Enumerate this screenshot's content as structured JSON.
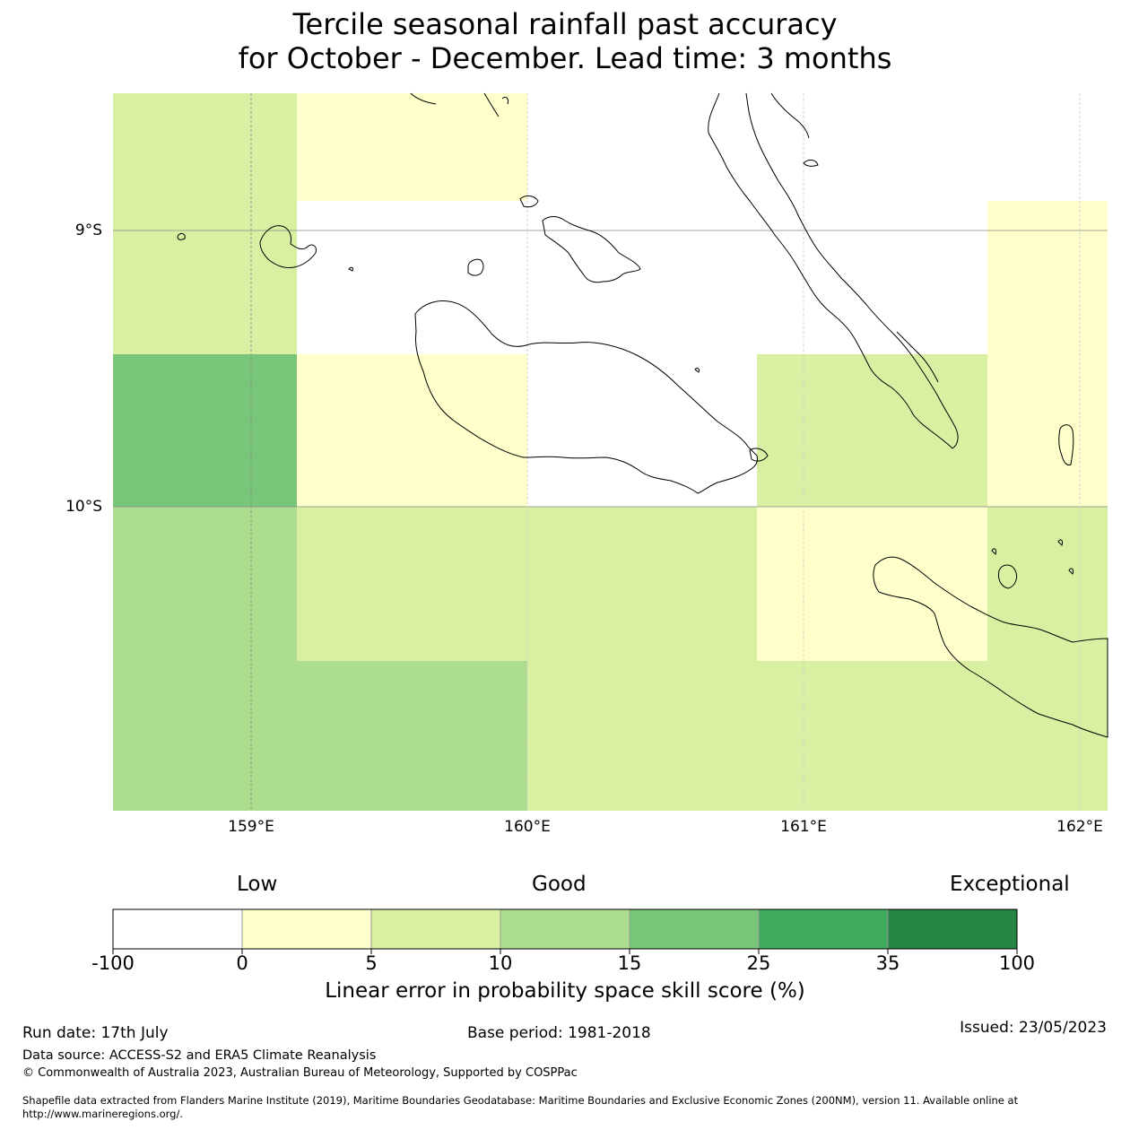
{
  "title": {
    "line1": "Tercile seasonal rainfall past accuracy",
    "line2": "for October - December. Lead time: 3 months"
  },
  "map": {
    "lat_labels": [
      "9°S",
      "10°S"
    ],
    "lon_labels": [
      "159°E",
      "160°E",
      "161°E",
      "162°E"
    ],
    "colors": {
      "no_skill": "#ffffff",
      "band_0_5": "#ffffcc",
      "band_5_10": "#d9f0a3",
      "band_10_15": "#addd8e",
      "band_15_25": "#78c679",
      "band_25_35": "#41ab5d",
      "band_35_100": "#238443",
      "coastline": "#000000",
      "gridline": "#888888"
    }
  },
  "legend": {
    "categories": [
      "Low",
      "Good",
      "Exceptional"
    ],
    "ticks": [
      "-100",
      "0",
      "5",
      "10",
      "15",
      "25",
      "35",
      "100"
    ],
    "title": "Linear error in probability space skill score (%)"
  },
  "footer": {
    "run_date": "Run date: 17th July",
    "base_period": "Base period: 1981-2018",
    "issued": "Issued: 23/05/2023",
    "data_source": "Data source: ACCESS-S2 and ERA5 Climate Reanalysis",
    "copyright": "© Commonwealth of Australia 2023, Australian Bureau of Meteorology, Supported by COSPPac",
    "shapefile_line1": "Shapefile data extracted from Flanders Marine Institute (2019), Maritime Boundaries Geodatabase: Maritime Boundaries and Exclusive Economic Zones (200NM), version 11. Available online at",
    "shapefile_line2": "http://www.marineregions.org/."
  }
}
